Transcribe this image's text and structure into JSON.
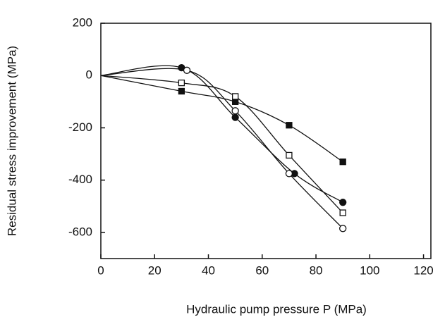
{
  "chart_data": {
    "type": "scatter",
    "x_label": "Hydraulic pump pressure   P (MPa)",
    "y_label": "Residual stress improvement  (MPa)",
    "xlim": [
      0,
      123
    ],
    "ylim": [
      -700,
      200
    ],
    "xticks": [
      0,
      20,
      40,
      60,
      80,
      100,
      120
    ],
    "yticks": [
      200,
      0,
      -200,
      -400,
      -600
    ],
    "color": "#111111",
    "series": [
      {
        "marker": "filled-circle",
        "x": [
          30,
          50,
          72,
          90
        ],
        "values": [
          30,
          -160,
          -375,
          -485
        ]
      },
      {
        "marker": "open-circle",
        "x": [
          32,
          50,
          70,
          90
        ],
        "values": [
          20,
          -135,
          -375,
          -585
        ]
      },
      {
        "marker": "filled-square",
        "x": [
          30,
          50,
          70,
          90
        ],
        "values": [
          -60,
          -100,
          -190,
          -330
        ]
      },
      {
        "marker": "open-square",
        "x": [
          30,
          50,
          70,
          90
        ],
        "values": [
          -28,
          -80,
          -305,
          -525
        ]
      }
    ]
  }
}
